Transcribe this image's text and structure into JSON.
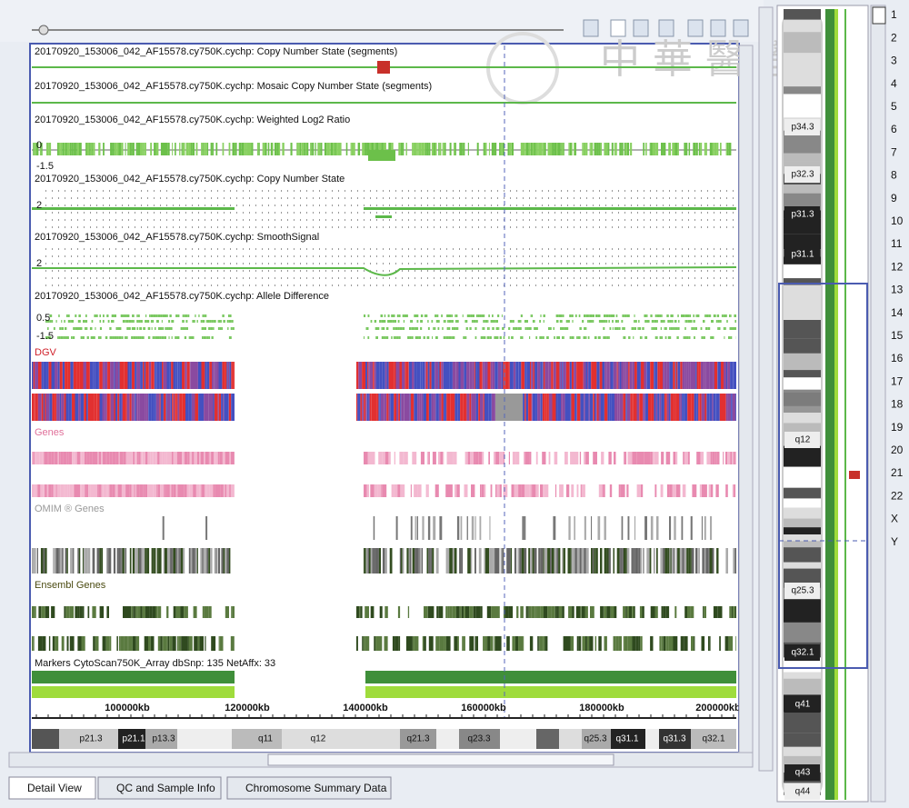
{
  "tracks": [
    {
      "title": "20170920_153006_042_AF15578.cy750K.cychp: Copy Number State (segments)"
    },
    {
      "title": "20170920_153006_042_AF15578.cy750K.cychp: Mosaic Copy Number State (segments)"
    },
    {
      "title": "20170920_153006_042_AF15578.cy750K.cychp: Weighted Log2 Ratio"
    },
    {
      "title": "20170920_153006_042_AF15578.cy750K.cychp: Copy Number State"
    },
    {
      "title": "20170920_153006_042_AF15578.cy750K.cychp: SmoothSignal"
    },
    {
      "title": "20170920_153006_042_AF15578.cy750K.cychp: Allele Difference"
    },
    {
      "title": "DGV"
    },
    {
      "title": "Genes"
    },
    {
      "title": "OMIM ® Genes"
    },
    {
      "title": "Ensembl Genes"
    },
    {
      "title": "Markers CytoScan750K_Array dbSnp: 135 NetAffx: 33"
    }
  ],
  "axis_labels": {
    "log2": [
      "0",
      "-1.5"
    ],
    "copy_number": [
      "2"
    ],
    "smooth_signal": [
      "2"
    ],
    "allele": [
      "0.5",
      "-1.5"
    ]
  },
  "position_labels": [
    "100000kb",
    "120000kb",
    "140000kb",
    "160000kb",
    "180000kb",
    "200000kb"
  ],
  "ideogram_bands": [
    "p21.3",
    "p21.1",
    "p13.3",
    "q11",
    "q12",
    "q21.3",
    "q23.3",
    "q25.3",
    "q31.1",
    "q31.3",
    "q32.1"
  ],
  "overview_bands": [
    "p34.3",
    "p32.3",
    "p31.3",
    "p31.1",
    "q12",
    "q25.3",
    "q32.1",
    "q41",
    "q43",
    "q44"
  ],
  "chromosomes": [
    "1",
    "2",
    "3",
    "4",
    "5",
    "6",
    "7",
    "8",
    "9",
    "10",
    "11",
    "12",
    "13",
    "14",
    "15",
    "16",
    "17",
    "18",
    "19",
    "20",
    "21",
    "22",
    "X",
    "Y"
  ],
  "tabs": [
    "Detail View",
    "QC and Sample Info",
    "Chromosome Summary Data"
  ],
  "watermark": "中華醫學會"
}
